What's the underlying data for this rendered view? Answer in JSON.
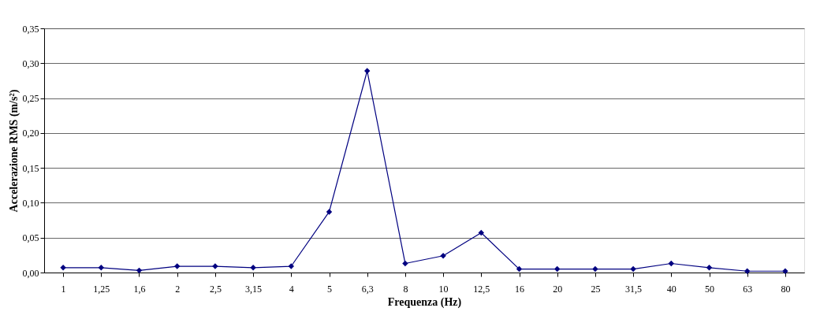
{
  "chart_data": {
    "type": "line",
    "xlabel": "Frequenza (Hz)",
    "ylabel": "Accelerazione RMS (m/s²)",
    "categories": [
      "1",
      "1,25",
      "1,6",
      "2",
      "2,5",
      "3,15",
      "4",
      "5",
      "6,3",
      "8",
      "10",
      "12,5",
      "16",
      "20",
      "25",
      "31,5",
      "40",
      "50",
      "63",
      "80"
    ],
    "series": [
      {
        "color": "#000080",
        "values": [
          0.007,
          0.007,
          0.003,
          0.009,
          0.009,
          0.007,
          0.009,
          0.087,
          0.289,
          0.013,
          0.024,
          0.057,
          0.005,
          0.005,
          0.005,
          0.005,
          0.013,
          0.007,
          0.002,
          0.002
        ]
      }
    ],
    "ylim": [
      0,
      0.35
    ],
    "yticks": [
      {
        "value": 0,
        "label": "0,00"
      },
      {
        "value": 0.05,
        "label": "0,05"
      },
      {
        "value": 0.1,
        "label": "0,10"
      },
      {
        "value": 0.15,
        "label": "0,15"
      },
      {
        "value": 0.2,
        "label": "0,20"
      },
      {
        "value": 0.25,
        "label": "0,25"
      },
      {
        "value": 0.3,
        "label": "0,30"
      },
      {
        "value": 0.35,
        "label": "0,35"
      }
    ],
    "grid": "y",
    "marker": "diamond",
    "line_style": "solid",
    "legend": false
  }
}
